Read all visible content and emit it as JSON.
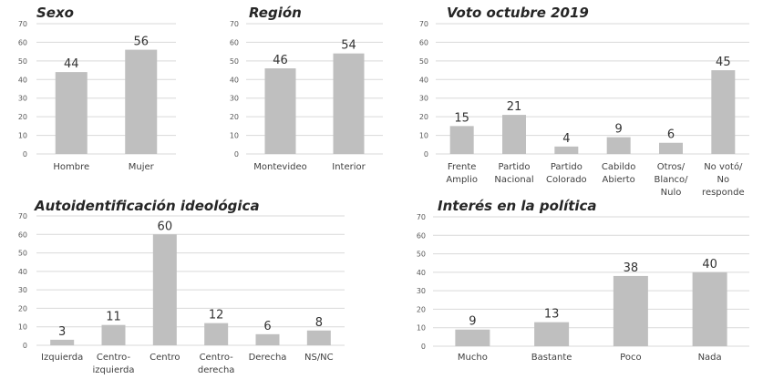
{
  "chart_data": [
    {
      "type": "bar",
      "title": "Sexo",
      "categories": [
        "Hombre",
        "Mujer"
      ],
      "values": [
        44,
        56
      ],
      "ylim": [
        0,
        70
      ],
      "yticks": [
        0,
        10,
        20,
        30,
        40,
        50,
        60,
        70
      ],
      "grid": true,
      "bar_color": "#bfbfbf"
    },
    {
      "type": "bar",
      "title": "Región",
      "categories": [
        "Montevideo",
        "Interior"
      ],
      "values": [
        46,
        54
      ],
      "ylim": [
        0,
        70
      ],
      "yticks": [
        0,
        10,
        20,
        30,
        40,
        50,
        60,
        70
      ],
      "grid": true,
      "bar_color": "#bfbfbf"
    },
    {
      "type": "bar",
      "title": "Voto octubre 2019",
      "categories": [
        "Frente Amplio",
        "Partido Nacional",
        "Partido Colorado",
        "Cabildo Abierto",
        "Otros/ Blanco/ Nulo",
        "No votó/ No responde"
      ],
      "category_lines": [
        [
          "Frente",
          "Amplio"
        ],
        [
          "Partido",
          "Nacional"
        ],
        [
          "Partido",
          "Colorado"
        ],
        [
          "Cabildo",
          "Abierto"
        ],
        [
          "Otros/",
          "Blanco/",
          "Nulo"
        ],
        [
          "No votó/",
          "No",
          "responde"
        ]
      ],
      "values": [
        15,
        21,
        4,
        9,
        6,
        45
      ],
      "ylim": [
        0,
        70
      ],
      "yticks": [
        0,
        10,
        20,
        30,
        40,
        50,
        60,
        70
      ],
      "grid": true,
      "bar_color": "#bfbfbf"
    },
    {
      "type": "bar",
      "title": "Autoidentificación ideológica",
      "categories": [
        "Izquierda",
        "Centro-izquierda",
        "Centro",
        "Centro-derecha",
        "Derecha",
        "NS/NC"
      ],
      "category_lines": [
        [
          "Izquierda"
        ],
        [
          "Centro-",
          "izquierda"
        ],
        [
          "Centro"
        ],
        [
          "Centro-",
          "derecha"
        ],
        [
          "Derecha"
        ],
        [
          "NS/NC"
        ]
      ],
      "values": [
        3,
        11,
        60,
        12,
        6,
        8
      ],
      "ylim": [
        0,
        70
      ],
      "yticks": [
        0,
        10,
        20,
        30,
        40,
        50,
        60,
        70
      ],
      "grid": true,
      "bar_color": "#bfbfbf"
    },
    {
      "type": "bar",
      "title": "Interés en la política",
      "categories": [
        "Mucho",
        "Bastante",
        "Poco",
        "Nada"
      ],
      "values": [
        9,
        13,
        38,
        40
      ],
      "ylim": [
        0,
        70
      ],
      "yticks": [
        0,
        10,
        20,
        30,
        40,
        50,
        60,
        70
      ],
      "grid": true,
      "bar_color": "#bfbfbf"
    }
  ]
}
